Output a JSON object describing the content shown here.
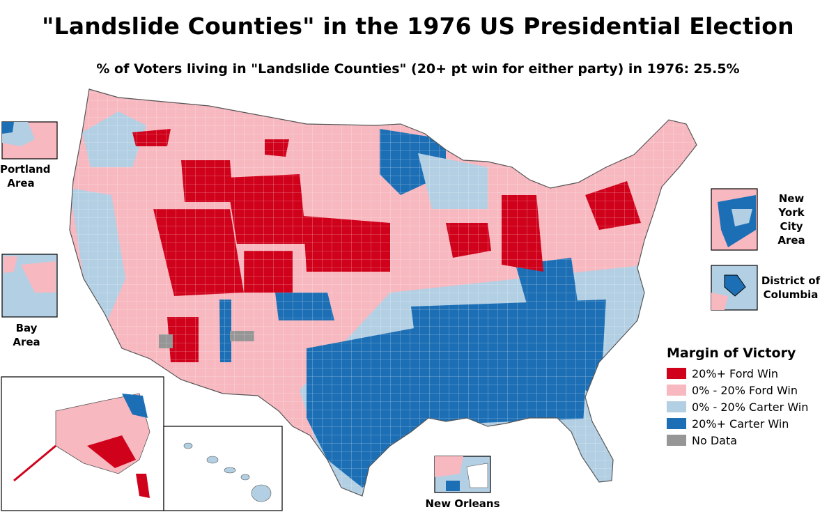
{
  "title": "\"Landslide Counties\" in the 1976 US Presidential Election",
  "subtitle": "% of Voters living in \"Landslide Counties\" (20+ pt win for either party) in 1976: 25.5%",
  "insets": {
    "portland": "Portland Area",
    "bay": "Bay Area",
    "nyc": "New York City Area",
    "dc": "District of Columbia",
    "new_orleans": "New Orleans"
  },
  "legend": {
    "title": "Margin of Victory",
    "items": [
      {
        "label": "20%+ Ford Win",
        "color": "#d0021b"
      },
      {
        "label": "0% - 20% Ford Win",
        "color": "#f7b8c0"
      },
      {
        "label": "0% - 20% Carter Win",
        "color": "#b3cfe3"
      },
      {
        "label": "20%+ Carter Win",
        "color": "#1c6fb5"
      },
      {
        "label": "No Data",
        "color": "#969696"
      }
    ]
  },
  "colors": {
    "ford_landslide": "#d0021b",
    "ford_lean": "#f7b8c0",
    "carter_lean": "#b3cfe3",
    "carter_landslide": "#1c6fb5",
    "no_data": "#969696",
    "border": "#555555"
  }
}
